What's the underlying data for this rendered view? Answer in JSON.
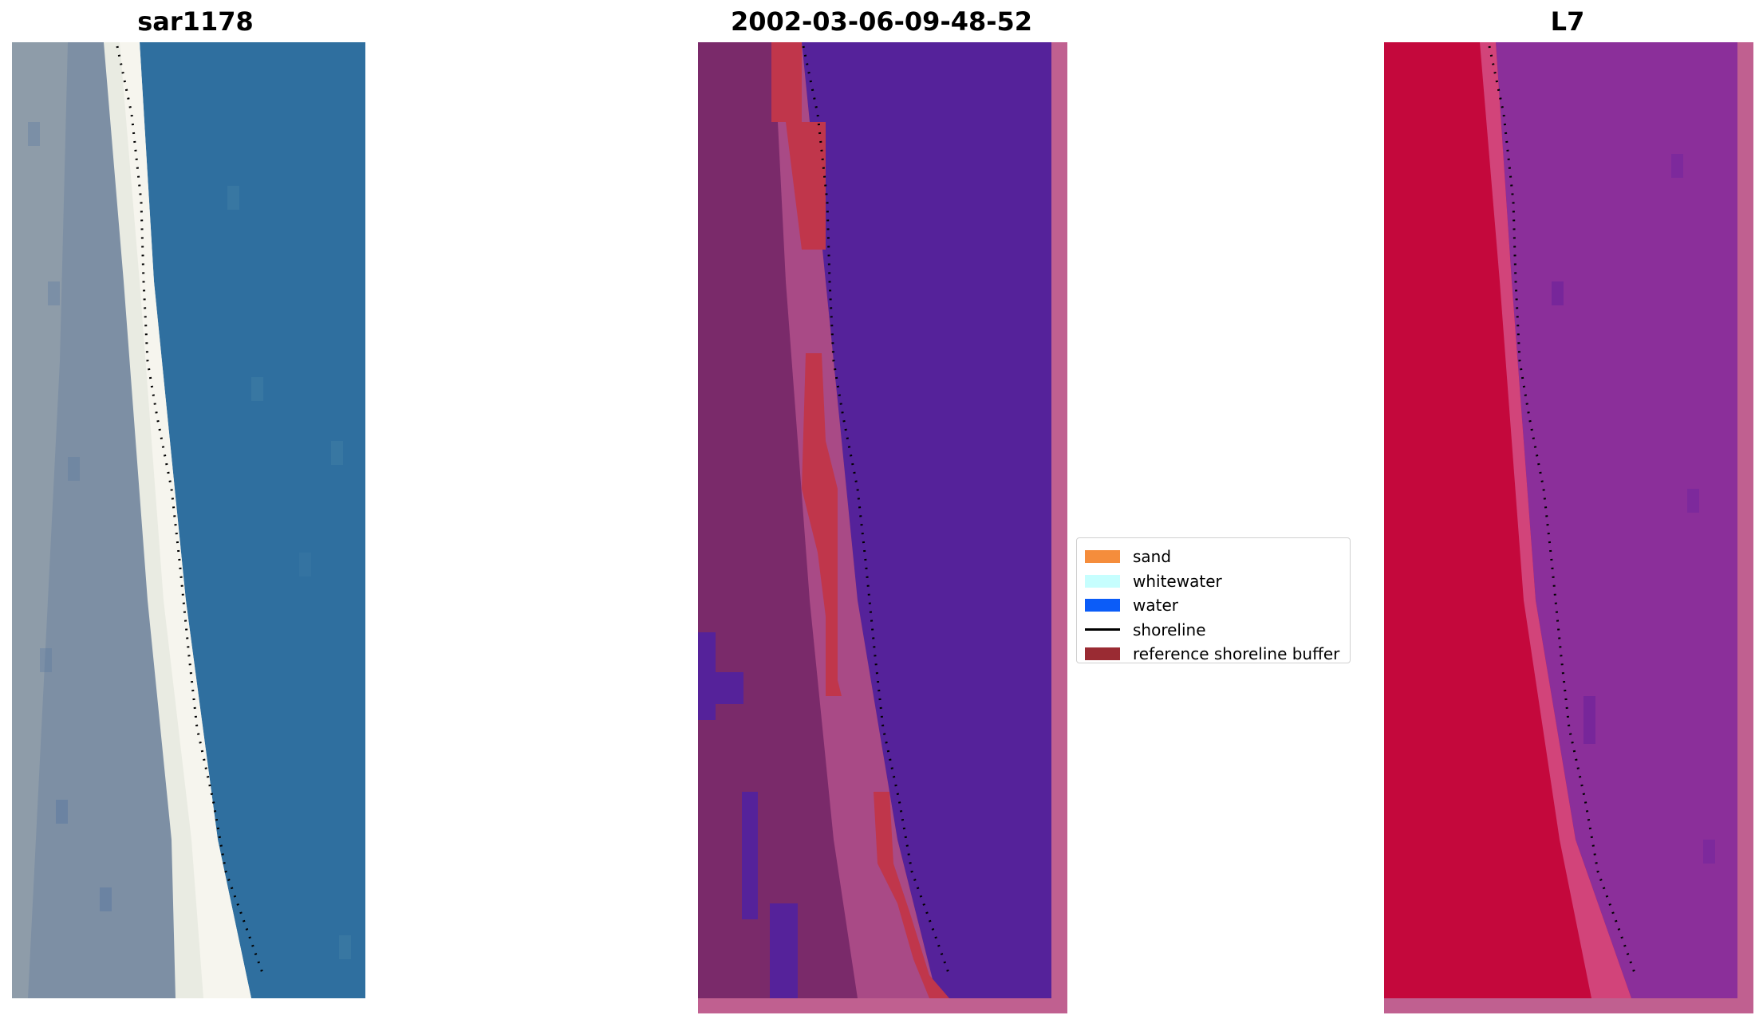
{
  "panels": {
    "left_title": "sar1178",
    "center_title": "2002-03-06-09-48-52",
    "right_title": "L7"
  },
  "legend": {
    "items": [
      {
        "label": "sand",
        "color": "#f58d3c"
      },
      {
        "label": "whitewater",
        "color": "#c6fefe"
      },
      {
        "label": "water",
        "color": "#0b5cf8"
      },
      {
        "label": "shoreline",
        "color": "#000000"
      },
      {
        "label": "reference shoreline buffer",
        "color": "#9a2b33"
      }
    ]
  },
  "colors": {
    "rgb_water": "#2f6f9f",
    "rgb_beach": "#e6e8e0",
    "classified_water": "#55229a",
    "classified_land": "#7a2a6a",
    "buffer": "#c0364b",
    "ndwi_land": "#c4083c",
    "ndwi_water": "#8b2f9a",
    "frame": "#c06090"
  }
}
